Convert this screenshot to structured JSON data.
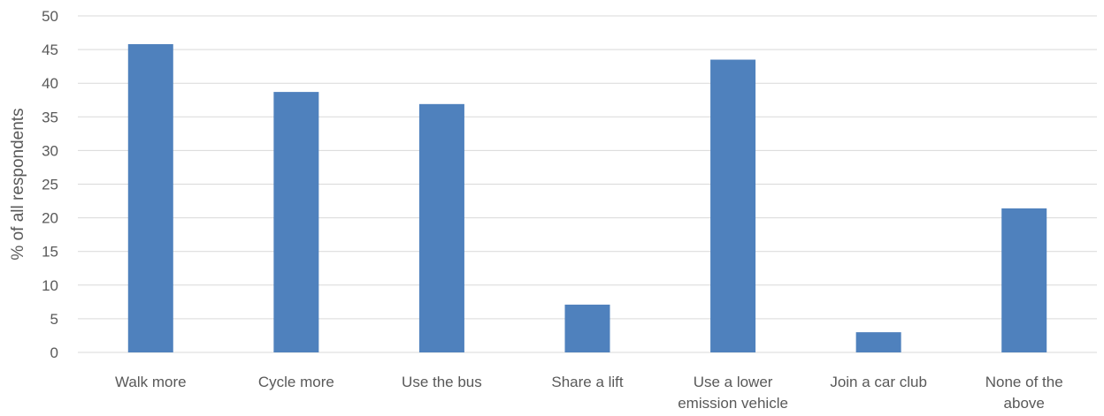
{
  "chart_data": {
    "type": "bar",
    "categories": [
      [
        "Walk more"
      ],
      [
        "Cycle more"
      ],
      [
        "Use the bus"
      ],
      [
        "Share a lift"
      ],
      [
        "Use a lower",
        "emission vehicle"
      ],
      [
        "Join a car club"
      ],
      [
        "None of the",
        "above"
      ]
    ],
    "values": [
      45.8,
      38.7,
      36.9,
      7.1,
      43.5,
      3.0,
      21.4
    ],
    "ylabel": "% of all respondents",
    "ylim": [
      0,
      50
    ],
    "yticks": [
      0,
      5,
      10,
      15,
      20,
      25,
      30,
      35,
      40,
      45,
      50
    ],
    "grid": true,
    "legend": "none",
    "bar_color": "#4f81bd",
    "grid_color": "#d9d9d9"
  }
}
